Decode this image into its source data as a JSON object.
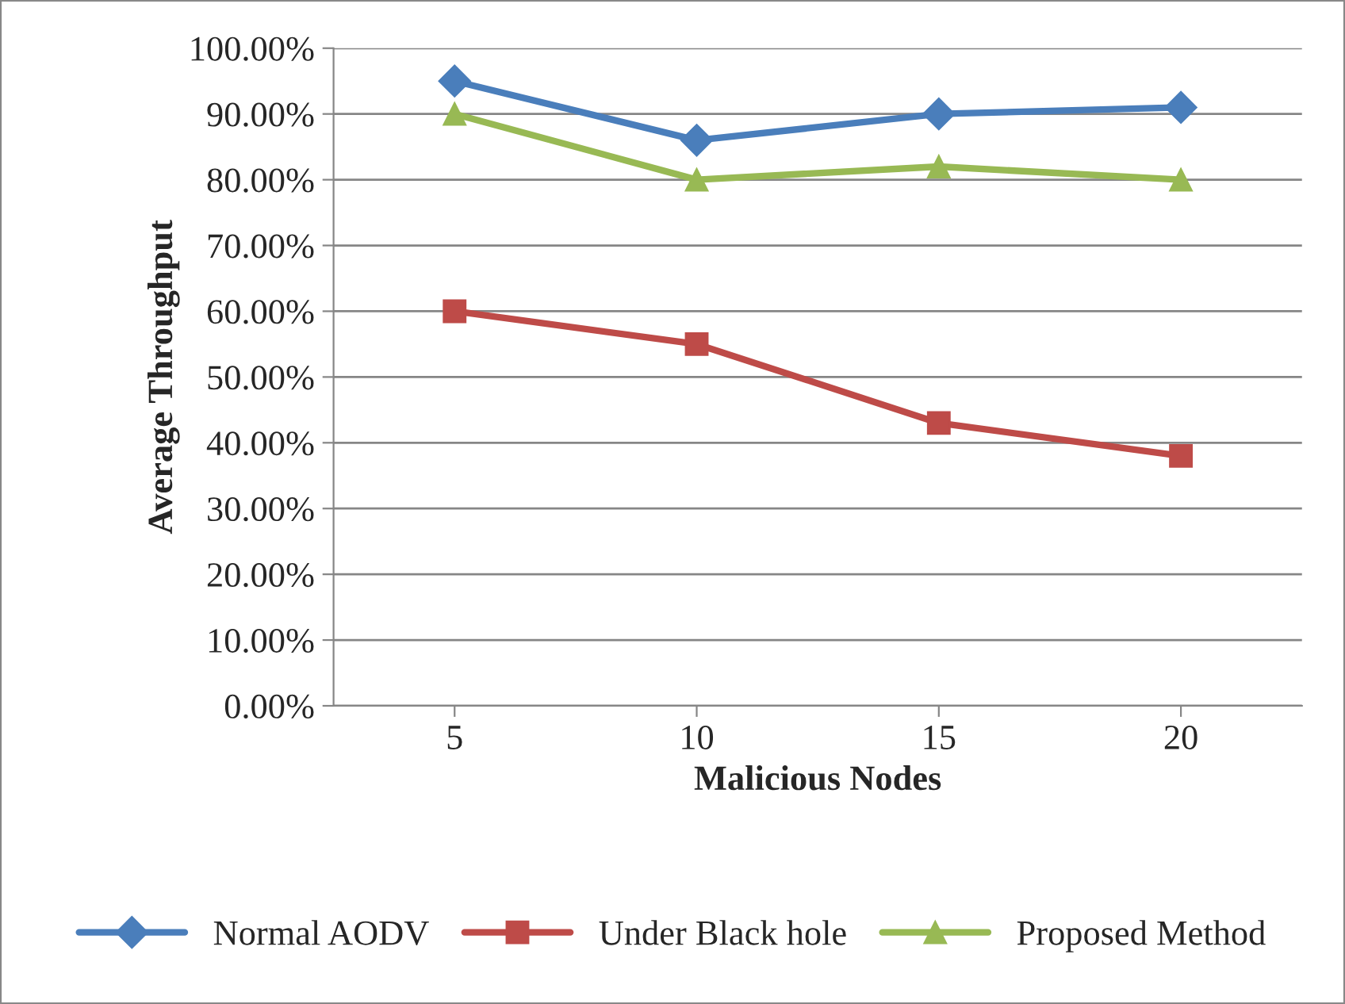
{
  "chart_data": {
    "type": "line",
    "xlabel": "Malicious Nodes",
    "ylabel": "Average Throughput",
    "categories": [
      "5",
      "10",
      "15",
      "20"
    ],
    "series": [
      {
        "name": "Normal AODV",
        "color": "#4a7ebb",
        "marker": "diamond",
        "values": [
          95,
          86,
          90,
          91
        ]
      },
      {
        "name": "Under Black hole",
        "color": "#be4b48",
        "marker": "square",
        "values": [
          60,
          55,
          43,
          38
        ]
      },
      {
        "name": "Proposed Method",
        "color": "#98b954",
        "marker": "triangle",
        "values": [
          90,
          80,
          82,
          80
        ]
      }
    ],
    "ylim": [
      0,
      100
    ],
    "yticks": [
      {
        "value": 0,
        "label": "0.00%"
      },
      {
        "value": 10,
        "label": "10.00%"
      },
      {
        "value": 20,
        "label": "20.00%"
      },
      {
        "value": 30,
        "label": "30.00%"
      },
      {
        "value": 40,
        "label": "40.00%"
      },
      {
        "value": 50,
        "label": "50.00%"
      },
      {
        "value": 60,
        "label": "60.00%"
      },
      {
        "value": 70,
        "label": "70.00%"
      },
      {
        "value": 80,
        "label": "80.00%"
      },
      {
        "value": 90,
        "label": "90.00%"
      },
      {
        "value": 100,
        "label": "100.00%"
      }
    ],
    "grid": "y",
    "legend": "bottom",
    "line_style": "solid"
  }
}
